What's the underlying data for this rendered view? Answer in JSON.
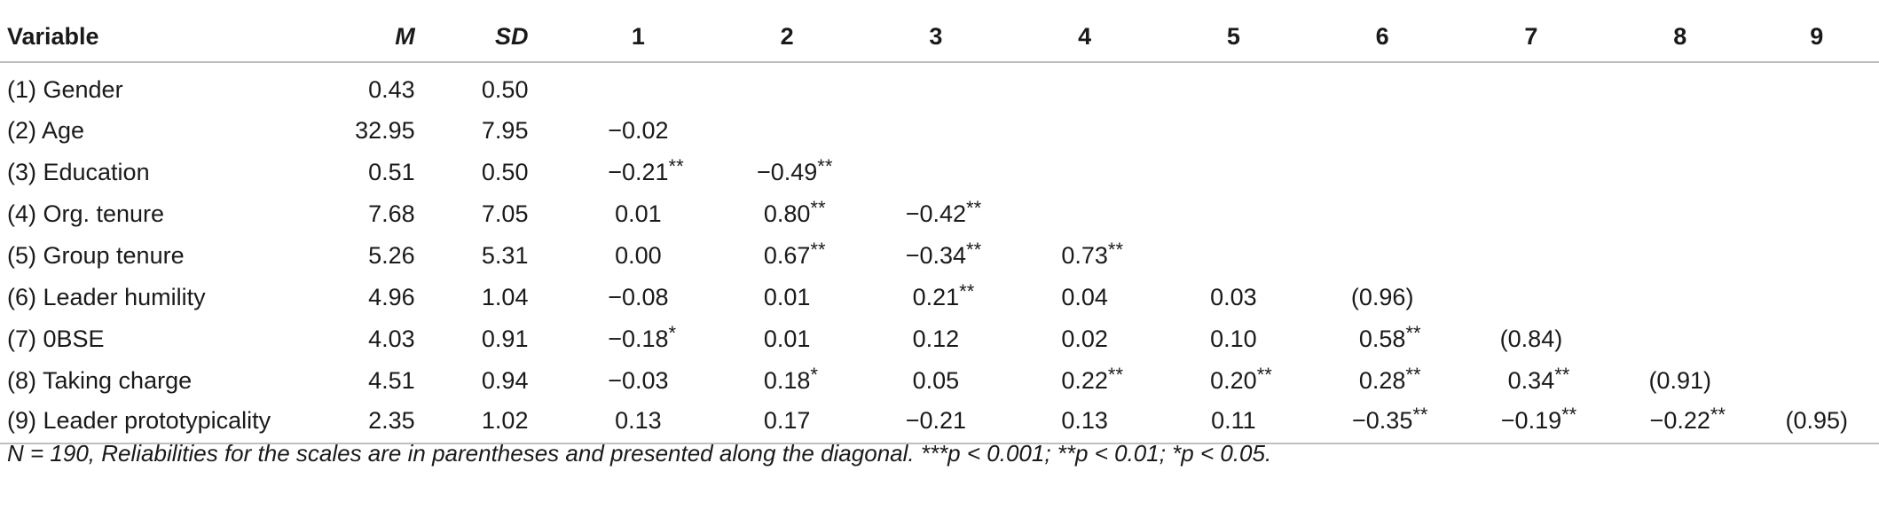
{
  "table": {
    "headers": [
      "Variable",
      "M",
      "SD",
      "1",
      "2",
      "3",
      "4",
      "5",
      "6",
      "7",
      "8",
      "9"
    ],
    "rows": [
      {
        "variable": "(1) Gender",
        "m": "0.43",
        "sd": "0.50",
        "cells": [
          {
            "v": "",
            "s": ""
          },
          {
            "v": "",
            "s": ""
          },
          {
            "v": "",
            "s": ""
          },
          {
            "v": "",
            "s": ""
          },
          {
            "v": "",
            "s": ""
          },
          {
            "v": "",
            "s": ""
          },
          {
            "v": "",
            "s": ""
          },
          {
            "v": "",
            "s": ""
          },
          {
            "v": "",
            "s": ""
          }
        ]
      },
      {
        "variable": "(2) Age",
        "m": "32.95",
        "sd": "7.95",
        "cells": [
          {
            "v": "−0.02",
            "s": ""
          },
          {
            "v": "",
            "s": ""
          },
          {
            "v": "",
            "s": ""
          },
          {
            "v": "",
            "s": ""
          },
          {
            "v": "",
            "s": ""
          },
          {
            "v": "",
            "s": ""
          },
          {
            "v": "",
            "s": ""
          },
          {
            "v": "",
            "s": ""
          },
          {
            "v": "",
            "s": ""
          }
        ]
      },
      {
        "variable": "(3) Education",
        "m": "0.51",
        "sd": "0.50",
        "cells": [
          {
            "v": "−0.21",
            "s": "**"
          },
          {
            "v": "−0.49",
            "s": "**"
          },
          {
            "v": "",
            "s": ""
          },
          {
            "v": "",
            "s": ""
          },
          {
            "v": "",
            "s": ""
          },
          {
            "v": "",
            "s": ""
          },
          {
            "v": "",
            "s": ""
          },
          {
            "v": "",
            "s": ""
          },
          {
            "v": "",
            "s": ""
          }
        ]
      },
      {
        "variable": "(4) Org. tenure",
        "m": "7.68",
        "sd": "7.05",
        "cells": [
          {
            "v": "0.01",
            "s": ""
          },
          {
            "v": "0.80",
            "s": "**"
          },
          {
            "v": "−0.42",
            "s": "**"
          },
          {
            "v": "",
            "s": ""
          },
          {
            "v": "",
            "s": ""
          },
          {
            "v": "",
            "s": ""
          },
          {
            "v": "",
            "s": ""
          },
          {
            "v": "",
            "s": ""
          },
          {
            "v": "",
            "s": ""
          }
        ]
      },
      {
        "variable": "(5) Group tenure",
        "m": "5.26",
        "sd": "5.31",
        "cells": [
          {
            "v": "0.00",
            "s": ""
          },
          {
            "v": "0.67",
            "s": "**"
          },
          {
            "v": "−0.34",
            "s": "**"
          },
          {
            "v": "0.73",
            "s": "**"
          },
          {
            "v": "",
            "s": ""
          },
          {
            "v": "",
            "s": ""
          },
          {
            "v": "",
            "s": ""
          },
          {
            "v": "",
            "s": ""
          },
          {
            "v": "",
            "s": ""
          }
        ]
      },
      {
        "variable": "(6) Leader humility",
        "m": "4.96",
        "sd": "1.04",
        "cells": [
          {
            "v": "−0.08",
            "s": ""
          },
          {
            "v": "0.01",
            "s": ""
          },
          {
            "v": "0.21",
            "s": "**"
          },
          {
            "v": "0.04",
            "s": ""
          },
          {
            "v": "0.03",
            "s": ""
          },
          {
            "v": "(0.96)",
            "s": ""
          },
          {
            "v": "",
            "s": ""
          },
          {
            "v": "",
            "s": ""
          },
          {
            "v": "",
            "s": ""
          }
        ]
      },
      {
        "variable": "(7) 0BSE",
        "m": "4.03",
        "sd": "0.91",
        "cells": [
          {
            "v": "−0.18",
            "s": "*"
          },
          {
            "v": "0.01",
            "s": ""
          },
          {
            "v": "0.12",
            "s": ""
          },
          {
            "v": "0.02",
            "s": ""
          },
          {
            "v": "0.10",
            "s": ""
          },
          {
            "v": "0.58",
            "s": "**"
          },
          {
            "v": "(0.84)",
            "s": ""
          },
          {
            "v": "",
            "s": ""
          },
          {
            "v": "",
            "s": ""
          }
        ]
      },
      {
        "variable": "(8) Taking charge",
        "m": "4.51",
        "sd": "0.94",
        "cells": [
          {
            "v": "−0.03",
            "s": ""
          },
          {
            "v": "0.18",
            "s": "*"
          },
          {
            "v": "0.05",
            "s": ""
          },
          {
            "v": "0.22",
            "s": "**"
          },
          {
            "v": "0.20",
            "s": "**"
          },
          {
            "v": "0.28",
            "s": "**"
          },
          {
            "v": "0.34",
            "s": "**"
          },
          {
            "v": "(0.91)",
            "s": ""
          },
          {
            "v": "",
            "s": ""
          }
        ]
      },
      {
        "variable": "(9) Leader prototypicality",
        "m": "2.35",
        "sd": "1.02",
        "cells": [
          {
            "v": "0.13",
            "s": ""
          },
          {
            "v": "0.17",
            "s": ""
          },
          {
            "v": "−0.21",
            "s": ""
          },
          {
            "v": "0.13",
            "s": ""
          },
          {
            "v": "0.11",
            "s": ""
          },
          {
            "v": "−0.35",
            "s": "**"
          },
          {
            "v": "−0.19",
            "s": "**"
          },
          {
            "v": "−0.22",
            "s": "**"
          },
          {
            "v": "(0.95)",
            "s": ""
          }
        ]
      }
    ],
    "note": "N = 190, Reliabilities for the scales are in parentheses and presented along the diagonal. ***p < 0.001; **p < 0.01; *p < 0.05."
  }
}
